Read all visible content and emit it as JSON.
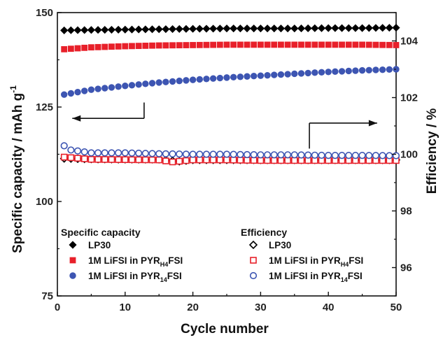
{
  "chart_data": {
    "type": "scatter",
    "xlabel": "Cycle number",
    "ylabel_left": "Specific capacity / mAh g",
    "ylabel_left_sup": "-1",
    "ylabel_right": "Efficiency / %",
    "xlim": [
      0,
      50
    ],
    "ylim_left": [
      75,
      150
    ],
    "ylim_right": [
      95,
      105
    ],
    "x_ticks": [
      0,
      10,
      20,
      30,
      40,
      50
    ],
    "y_left_ticks": [
      75,
      100,
      125,
      150
    ],
    "y_right_ticks": [
      96,
      98,
      100,
      102,
      104
    ],
    "legend": {
      "capacity_header": "Specific capacity",
      "efficiency_header": "Efficiency"
    },
    "series": [
      {
        "name": "LP30",
        "axis": "left",
        "marker": "diamond",
        "filled": true,
        "color": "#000000",
        "label_main": "LP30",
        "label_sub": "",
        "label_tail": "",
        "x": [
          1,
          5,
          10,
          15,
          20,
          25,
          30,
          35,
          40,
          45,
          50
        ],
        "y": [
          145.3,
          145.4,
          145.5,
          145.6,
          145.7,
          145.8,
          145.8,
          145.8,
          145.9,
          145.9,
          146.0
        ]
      },
      {
        "name": "1M LiFSI in PYRH4FSI",
        "axis": "left",
        "marker": "square",
        "filled": true,
        "color": "#e8202a",
        "label_main": "1M LiFSI in PYR",
        "label_sub": "H4",
        "label_tail": "FSI",
        "x": [
          1,
          5,
          10,
          15,
          20,
          25,
          30,
          35,
          40,
          45,
          50
        ],
        "y": [
          140.3,
          140.8,
          141.1,
          141.3,
          141.4,
          141.5,
          141.5,
          141.5,
          141.5,
          141.5,
          141.4
        ]
      },
      {
        "name": "1M LiFSI in PYR14FSI",
        "axis": "left",
        "marker": "circle",
        "filled": true,
        "color": "#3d55b2",
        "label_main": "1M LiFSI in PYR",
        "label_sub": "14",
        "label_tail": "FSI",
        "x": [
          1,
          5,
          10,
          15,
          20,
          25,
          30,
          35,
          40,
          45,
          50
        ],
        "y": [
          128.3,
          129.6,
          130.6,
          131.5,
          132.2,
          132.8,
          133.3,
          133.8,
          134.3,
          134.7,
          135.0
        ]
      },
      {
        "name": "LP30",
        "axis": "right",
        "marker": "diamond",
        "filled": false,
        "color": "#000000",
        "label_main": "LP30",
        "label_sub": "",
        "label_tail": "",
        "x": [
          1,
          5,
          10,
          15,
          18,
          20,
          25,
          30,
          35,
          40,
          45,
          50
        ],
        "y": [
          99.85,
          99.83,
          99.82,
          99.82,
          99.75,
          99.8,
          99.8,
          99.8,
          99.8,
          99.8,
          99.8,
          99.8
        ]
      },
      {
        "name": "1M LiFSI in PYRH4FSI",
        "axis": "right",
        "marker": "square",
        "filled": false,
        "color": "#e8202a",
        "label_main": "1M LiFSI in PYR",
        "label_sub": "H4",
        "label_tail": "FSI",
        "x": [
          1,
          5,
          10,
          15,
          17,
          20,
          25,
          30,
          35,
          40,
          45,
          50
        ],
        "y": [
          99.9,
          99.82,
          99.81,
          99.8,
          99.73,
          99.8,
          99.8,
          99.78,
          99.78,
          99.78,
          99.78,
          99.78
        ]
      },
      {
        "name": "1M LiFSI in PYR14FSI",
        "axis": "right",
        "marker": "circle",
        "filled": false,
        "color": "#3d55b2",
        "label_main": "1M LiFSI in PYR",
        "label_sub": "14",
        "label_tail": "FSI",
        "x": [
          1,
          2,
          5,
          10,
          15,
          20,
          25,
          30,
          35,
          40,
          45,
          50
        ],
        "y": [
          100.3,
          100.15,
          100.05,
          100.05,
          100.02,
          100.0,
          100.0,
          99.98,
          99.98,
          99.96,
          99.96,
          99.95
        ]
      }
    ],
    "arrows": [
      {
        "axis": "left",
        "direction": "left",
        "x_from": 12.8,
        "x_to": 2.2,
        "y": 122.0,
        "hook_to": 126.2
      },
      {
        "axis": "right",
        "direction": "right",
        "x_from": 37.2,
        "x_to": 47.2,
        "y": 101.1,
        "hook_to": 100.2
      }
    ]
  }
}
